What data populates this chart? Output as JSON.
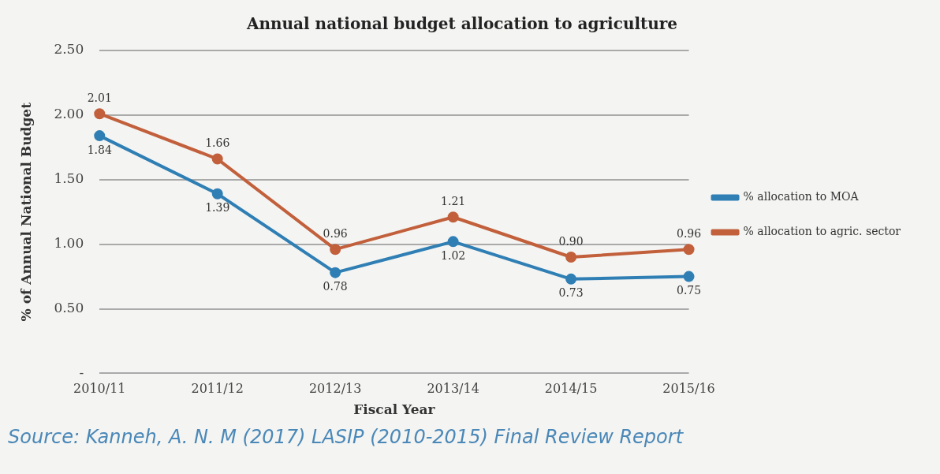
{
  "chart_data": {
    "type": "line",
    "title": "Annual national budget allocation to agriculture",
    "xlabel": "Fiscal Year",
    "ylabel": "% of Annual National Budget",
    "categories": [
      "2010/11",
      "2011/12",
      "2012/13",
      "2013/14",
      "2014/15",
      "2015/16"
    ],
    "series": [
      {
        "name": "% allocation to MOA",
        "color": "#2f7fb5",
        "values": [
          1.84,
          1.39,
          0.78,
          1.02,
          0.73,
          0.75
        ],
        "value_labels": [
          "1.84",
          "1.39",
          "0.78",
          "1.02",
          "0.73",
          "0.75"
        ]
      },
      {
        "name": "% allocation to agric. sector",
        "color": "#c2603c",
        "values": [
          2.01,
          1.66,
          0.96,
          1.21,
          0.9,
          0.96
        ],
        "value_labels": [
          "2.01",
          "1.66",
          "0.96",
          "1.21",
          "0.90",
          "0.96"
        ]
      }
    ],
    "ylim": [
      0,
      2.5
    ],
    "yticks": [
      {
        "value": 0,
        "label": "-"
      },
      {
        "value": 0.5,
        "label": "0.50"
      },
      {
        "value": 1,
        "label": "1.00"
      },
      {
        "value": 1.5,
        "label": "1.50"
      },
      {
        "value": 2,
        "label": "2.00"
      },
      {
        "value": 2.5,
        "label": "2.50"
      }
    ],
    "grid": "y",
    "legend": "right",
    "marker": "circle",
    "line_style": "solid",
    "annotations": [
      "Source: Kanneh, A. N. M (2017) LASIP (2010-2015) Final Review Report"
    ]
  }
}
